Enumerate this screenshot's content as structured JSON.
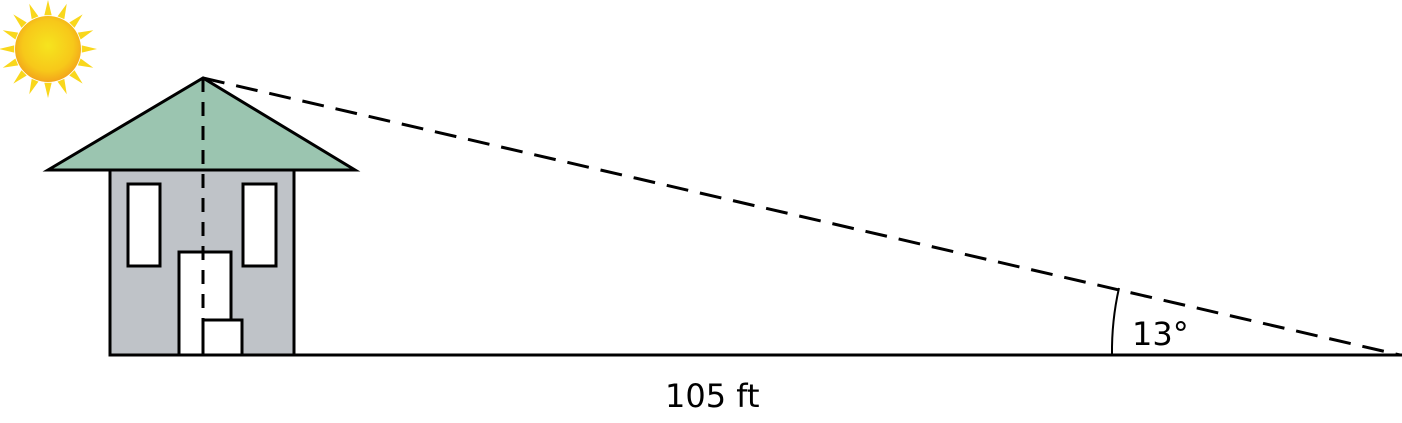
{
  "diagram": {
    "distance_label": "105 ft",
    "angle_label": "13°",
    "icons": [
      "sun-icon",
      "house-icon"
    ],
    "colors": {
      "roof": "#9bc5b0",
      "wall": "#bfc3c8",
      "window": "#ffffff",
      "sun_outer": "#f9d71c",
      "sun_inner": "#f5a623",
      "line": "#000000"
    }
  }
}
